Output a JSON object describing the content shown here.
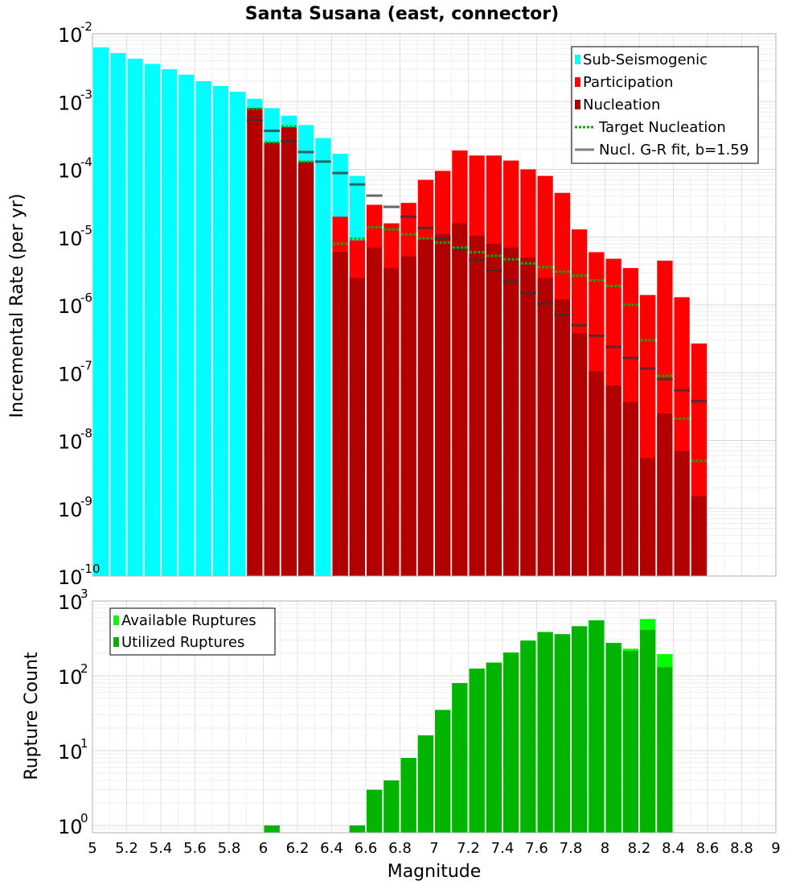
{
  "chart_data": [
    {
      "type": "bar",
      "title": "Santa Susana (east, connector)",
      "xlabel": "",
      "ylabel": "Incremental Rate (per yr)",
      "y_scale": "log",
      "ylim": [
        1e-10,
        0.01
      ],
      "xlim": [
        5,
        9
      ],
      "grid": true,
      "legend_position": "top-right",
      "legend": [
        {
          "label": "Sub-Seismogenic",
          "color": "#00ffff",
          "kind": "bar"
        },
        {
          "label": "Participation",
          "color": "#ff0000",
          "kind": "bar"
        },
        {
          "label": "Nucleation",
          "color": "#b20000",
          "kind": "bar"
        },
        {
          "label": "Target Nucleation",
          "color": "#00b400",
          "kind": "dotted-line"
        },
        {
          "label": "Nucl. G-R fit, b=1.59",
          "color": "#808080",
          "kind": "line"
        }
      ],
      "y_ticks": [
        {
          "base": "10",
          "exp": "-10"
        },
        {
          "base": "10",
          "exp": "-9"
        },
        {
          "base": "10",
          "exp": "-8"
        },
        {
          "base": "10",
          "exp": "-7"
        },
        {
          "base": "10",
          "exp": "-6"
        },
        {
          "base": "10",
          "exp": "-5"
        },
        {
          "base": "10",
          "exp": "-4"
        },
        {
          "base": "10",
          "exp": "-3"
        },
        {
          "base": "10",
          "exp": "-2"
        }
      ],
      "series": [
        {
          "name": "Sub-Seismogenic",
          "color": "#00ffff",
          "x": [
            5.05,
            5.15,
            5.25,
            5.35,
            5.45,
            5.55,
            5.65,
            5.75,
            5.85,
            5.95,
            6.05,
            6.15,
            6.25,
            6.35,
            6.45,
            6.55
          ],
          "values": [
            0.0063,
            0.0052,
            0.0043,
            0.0036,
            0.003,
            0.0025,
            0.002,
            0.0017,
            0.0014,
            0.0011,
            0.0008,
            0.00062,
            0.00045,
            0.00029,
            0.00017,
            8e-05
          ]
        },
        {
          "name": "Participation",
          "color": "#ff0000",
          "x": [
            6.45,
            6.55,
            6.65,
            6.75,
            6.85,
            6.95,
            7.05,
            7.15,
            7.25,
            7.35,
            7.45,
            7.55,
            7.65,
            7.75,
            7.85,
            7.95,
            8.05,
            8.15,
            8.25,
            8.35,
            8.45,
            8.55
          ],
          "values": [
            2e-05,
            9e-06,
            3e-05,
            1.6e-05,
            3.2e-05,
            7e-05,
            9.5e-05,
            0.00019,
            0.00016,
            0.00016,
            0.000135,
            0.0001,
            8e-05,
            4.5e-05,
            1.3e-05,
            6e-06,
            4.8e-06,
            3.5e-06,
            1.4e-06,
            4.5e-06,
            1.3e-06,
            2.7e-07
          ]
        },
        {
          "name": "Nucleation",
          "color": "#b20000",
          "x": [
            5.95,
            6.05,
            6.15,
            6.25,
            6.45,
            6.55,
            6.65,
            6.75,
            6.85,
            6.95,
            7.05,
            7.15,
            7.25,
            7.35,
            7.45,
            7.55,
            7.65,
            7.75,
            7.85,
            7.95,
            8.05,
            8.15,
            8.25,
            8.35,
            8.45,
            8.55
          ],
          "values": [
            0.0008,
            0.00025,
            0.00042,
            0.00013,
            6e-06,
            2.5e-06,
            7e-06,
            3.5e-06,
            5.2e-06,
            9.5e-06,
            1.1e-05,
            1.6e-05,
            1.05e-05,
            8e-06,
            7e-06,
            5e-06,
            2.5e-06,
            1.2e-06,
            3.8e-07,
            1.05e-07,
            6.5e-08,
            3.7e-08,
            5.5e-09,
            2.5e-08,
            7e-09,
            1.5e-09
          ]
        },
        {
          "name": "Target Nucleation",
          "color": "#00b400",
          "x": [
            5.95,
            6.05,
            6.15,
            6.25,
            6.45,
            6.55,
            6.65,
            6.75,
            6.85,
            6.95,
            7.05,
            7.15,
            7.25,
            7.35,
            7.45,
            7.55,
            7.65,
            7.75,
            7.85,
            7.95,
            8.05,
            8.15,
            8.25,
            8.35,
            8.45,
            8.55
          ],
          "values": [
            0.00078,
            0.00025,
            0.00043,
            0.00013,
            8e-06,
            9.5e-06,
            1.4e-05,
            1.3e-05,
            1.1e-05,
            9.5e-06,
            8.3e-06,
            7e-06,
            6e-06,
            5.3e-06,
            4.7e-06,
            4.1e-06,
            3.6e-06,
            3.1e-06,
            2.7e-06,
            2.3e-06,
            1.9e-06,
            1e-06,
            3e-07,
            9e-08,
            2.1e-08,
            5e-09
          ]
        },
        {
          "name": "Nucl. G-R fit, b=1.59",
          "color": "#808080",
          "x": [
            5.95,
            6.05,
            6.15,
            6.25,
            6.35,
            6.45,
            6.55,
            6.65,
            6.75,
            6.85,
            6.95,
            7.05,
            7.15,
            7.25,
            7.35,
            7.45,
            7.55,
            7.65,
            7.75,
            7.85,
            7.95,
            8.05,
            8.15,
            8.25,
            8.35,
            8.45,
            8.55
          ],
          "values": [
            0.00053,
            0.00037,
            0.00026,
            0.00018,
            0.00013,
            8.8e-05,
            6e-05,
            4.1e-05,
            2.8e-05,
            2e-05,
            1.37e-05,
            9.5e-06,
            6.6e-06,
            4.6e-06,
            3.2e-06,
            2.2e-06,
            1.5e-06,
            1.05e-06,
            7.2e-07,
            5e-07,
            3.5e-07,
            2.4e-07,
            1.65e-07,
            1.15e-07,
            8e-08,
            5.5e-08,
            3.8e-08
          ]
        }
      ]
    },
    {
      "type": "bar",
      "title": "",
      "xlabel": "Magnitude",
      "ylabel": "Rupture Count",
      "y_scale": "log",
      "ylim": [
        0.8,
        1000
      ],
      "xlim": [
        5,
        9
      ],
      "grid": true,
      "legend_position": "top-left",
      "legend": [
        {
          "label": "Available Ruptures",
          "color": "#00ff00"
        },
        {
          "label": "Utilized Ruptures",
          "color": "#00b400"
        }
      ],
      "x_ticks": [
        "5",
        "5.2",
        "5.4",
        "5.6",
        "5.8",
        "6",
        "6.2",
        "6.4",
        "6.6",
        "6.8",
        "7",
        "7.2",
        "7.4",
        "7.6",
        "7.8",
        "8",
        "8.2",
        "8.4",
        "8.6",
        "8.8",
        "9"
      ],
      "y_ticks": [
        {
          "base": "10",
          "exp": "0"
        },
        {
          "base": "10",
          "exp": "1"
        },
        {
          "base": "10",
          "exp": "2"
        },
        {
          "base": "10",
          "exp": "3"
        }
      ],
      "series": [
        {
          "name": "Available Ruptures",
          "color": "#00ff00",
          "x": [
            6.05,
            6.55,
            6.65,
            6.75,
            6.85,
            6.95,
            7.05,
            7.15,
            7.25,
            7.35,
            7.45,
            7.55,
            7.65,
            7.75,
            7.85,
            7.95,
            8.05,
            8.15,
            8.25,
            8.35
          ],
          "values": [
            1,
            1,
            3,
            4,
            8,
            16,
            35,
            80,
            125,
            150,
            205,
            295,
            385,
            360,
            460,
            550,
            275,
            230,
            575,
            195
          ]
        },
        {
          "name": "Utilized Ruptures",
          "color": "#00b400",
          "x": [
            6.05,
            6.55,
            6.65,
            6.75,
            6.85,
            6.95,
            7.05,
            7.15,
            7.25,
            7.35,
            7.45,
            7.55,
            7.65,
            7.75,
            7.85,
            7.95,
            8.05,
            8.15,
            8.25,
            8.35
          ],
          "values": [
            1,
            1,
            3,
            4,
            8,
            16,
            35,
            80,
            125,
            150,
            205,
            295,
            385,
            360,
            460,
            550,
            275,
            215,
            410,
            130
          ]
        }
      ]
    }
  ]
}
